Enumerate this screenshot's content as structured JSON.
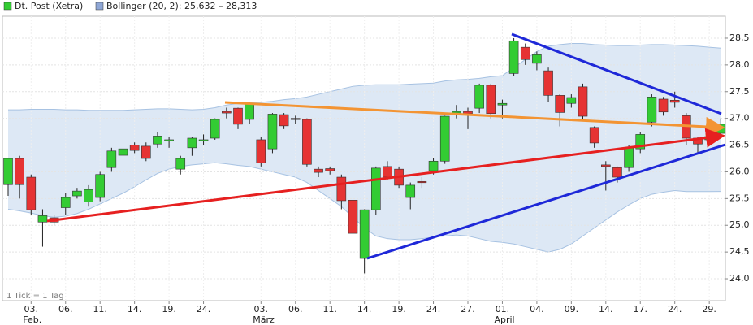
{
  "chart_data": {
    "type": "candlestick",
    "name": "Dt. Post (Xetra)",
    "up_color": "#33cc33",
    "down_color": "#e63333",
    "band": {
      "name": "Bollinger (20, 2): 25,632 – 28,313",
      "fill": "#dde8f5",
      "stroke": "#a7c2e2",
      "upper": [
        27.16,
        27.16,
        27.17,
        27.17,
        27.17,
        27.16,
        27.16,
        27.15,
        27.15,
        27.15,
        27.15,
        27.16,
        27.17,
        27.18,
        27.18,
        27.17,
        27.16,
        27.17,
        27.2,
        27.25,
        27.28,
        27.3,
        27.3,
        27.32,
        27.35,
        27.37,
        27.4,
        27.45,
        27.5,
        27.55,
        27.6,
        27.62,
        27.63,
        27.63,
        27.63,
        27.64,
        27.65,
        27.66,
        27.7,
        27.72,
        27.73,
        27.75,
        27.78,
        27.8,
        27.95,
        28.1,
        28.25,
        28.35,
        28.38,
        28.4,
        28.4,
        28.38,
        28.37,
        28.36,
        28.36,
        28.37,
        28.38,
        28.38,
        28.37,
        28.36,
        28.35,
        28.33,
        28.313
      ],
      "lower": [
        25.3,
        25.27,
        25.23,
        25.18,
        25.15,
        25.17,
        25.22,
        25.3,
        25.4,
        25.5,
        25.6,
        25.72,
        25.85,
        25.97,
        26.05,
        26.1,
        26.13,
        26.15,
        26.17,
        26.15,
        26.12,
        26.1,
        26.05,
        26.0,
        25.95,
        25.9,
        25.8,
        25.65,
        25.5,
        25.35,
        25.15,
        24.95,
        24.8,
        24.75,
        24.73,
        24.73,
        24.75,
        24.78,
        24.8,
        24.82,
        24.8,
        24.75,
        24.7,
        24.68,
        24.65,
        24.6,
        24.55,
        24.5,
        24.55,
        24.65,
        24.8,
        24.95,
        25.1,
        25.25,
        25.38,
        25.5,
        25.58,
        25.62,
        25.65,
        25.63,
        25.63,
        25.63,
        25.632
      ]
    },
    "categories": [
      null,
      null,
      "03.",
      null,
      null,
      "06.",
      null,
      null,
      "11.",
      null,
      null,
      "14.",
      null,
      null,
      "19.",
      null,
      null,
      "24.",
      null,
      null,
      null,
      null,
      "03.",
      null,
      null,
      "06.",
      null,
      null,
      "11.",
      null,
      null,
      "14.",
      null,
      null,
      "19.",
      null,
      null,
      "24.",
      null,
      null,
      "27.",
      null,
      null,
      "01.",
      null,
      null,
      "04.",
      null,
      null,
      "09.",
      null,
      null,
      "14.",
      null,
      null,
      "17.",
      null,
      null,
      "24.",
      null,
      null,
      "29.",
      null
    ],
    "months": [
      null,
      null,
      "Feb.",
      null,
      null,
      null,
      null,
      null,
      null,
      null,
      null,
      null,
      null,
      null,
      null,
      null,
      null,
      null,
      null,
      null,
      null,
      null,
      "März",
      null,
      null,
      null,
      null,
      null,
      null,
      null,
      null,
      null,
      null,
      null,
      null,
      null,
      null,
      null,
      null,
      null,
      null,
      null,
      null,
      "April",
      null,
      null,
      null,
      null,
      null,
      null,
      null,
      null,
      null,
      null,
      null,
      null,
      null,
      null,
      null,
      null,
      null,
      null,
      null
    ],
    "open": [
      25.76,
      26.25,
      25.9,
      25.06,
      25.14,
      25.33,
      25.55,
      25.44,
      25.52,
      26.08,
      26.31,
      26.5,
      26.48,
      26.52,
      26.58,
      26.05,
      26.45,
      26.58,
      26.63,
      27.13,
      27.19,
      26.98,
      26.6,
      26.43,
      27.07,
      27.0,
      26.98,
      26.05,
      26.06,
      25.9,
      25.47,
      24.38,
      25.29,
      26.1,
      26.05,
      25.52,
      25.82,
      26.02,
      26.2,
      27.1,
      27.13,
      27.19,
      27.62,
      27.25,
      27.84,
      28.33,
      28.03,
      27.89,
      27.43,
      27.28,
      27.59,
      26.83,
      26.13,
      26.08,
      26.08,
      26.43,
      26.93,
      27.36,
      27.34,
      27.05,
      26.63,
      26.6,
      26.72
    ],
    "high": [
      26.25,
      26.3,
      25.95,
      25.3,
      25.2,
      25.6,
      25.7,
      25.75,
      26.0,
      26.45,
      26.5,
      26.55,
      26.55,
      26.75,
      26.65,
      26.3,
      26.65,
      26.7,
      27.0,
      27.2,
      27.2,
      27.3,
      26.65,
      27.1,
      27.1,
      27.05,
      27.0,
      26.1,
      26.1,
      25.95,
      25.5,
      25.3,
      26.1,
      26.2,
      26.1,
      25.8,
      25.9,
      26.25,
      27.05,
      27.25,
      27.2,
      27.65,
      27.65,
      27.35,
      28.5,
      28.4,
      28.25,
      27.95,
      27.45,
      27.45,
      27.65,
      26.85,
      26.2,
      26.1,
      26.5,
      26.75,
      27.45,
      27.4,
      27.5,
      27.1,
      26.65,
      26.75,
      27.0
    ],
    "low": [
      25.55,
      25.5,
      25.2,
      24.6,
      25.0,
      25.2,
      25.5,
      25.35,
      25.45,
      26.0,
      26.25,
      26.35,
      26.2,
      26.45,
      26.45,
      25.95,
      26.3,
      26.5,
      26.6,
      27.0,
      26.8,
      26.9,
      26.1,
      26.35,
      26.8,
      26.9,
      26.1,
      25.9,
      25.95,
      25.3,
      24.75,
      24.1,
      25.2,
      25.85,
      25.7,
      25.3,
      25.7,
      25.95,
      26.15,
      27.0,
      26.8,
      27.1,
      27.0,
      27.0,
      27.8,
      28.0,
      27.9,
      27.3,
      26.85,
      27.2,
      26.95,
      26.45,
      25.65,
      25.8,
      26.0,
      26.35,
      26.85,
      27.05,
      27.2,
      26.5,
      26.35,
      26.55,
      26.65
    ],
    "close": [
      26.25,
      25.76,
      25.29,
      25.18,
      25.06,
      25.52,
      25.64,
      25.67,
      25.95,
      26.39,
      26.43,
      26.4,
      26.25,
      26.67,
      26.6,
      26.25,
      26.63,
      26.6,
      26.98,
      27.1,
      26.89,
      27.28,
      26.17,
      27.08,
      26.86,
      26.98,
      26.14,
      25.99,
      26.02,
      25.46,
      24.85,
      25.29,
      26.07,
      25.9,
      25.75,
      25.75,
      25.8,
      26.2,
      27.04,
      27.13,
      27.09,
      27.62,
      27.09,
      27.28,
      28.45,
      28.1,
      28.19,
      27.43,
      27.11,
      27.39,
      27.04,
      26.54,
      26.1,
      25.9,
      26.45,
      26.7,
      27.4,
      27.12,
      27.3,
      26.63,
      26.52,
      26.66,
      26.89
    ],
    "ylim": [
      23.59,
      28.91
    ],
    "yticks": [
      {
        "value": 24.0,
        "label": "24,0"
      },
      {
        "value": 24.5,
        "label": "24,5"
      },
      {
        "value": 25.0,
        "label": "25,0"
      },
      {
        "value": 25.5,
        "label": "25,5"
      },
      {
        "value": 26.0,
        "label": "26,0"
      },
      {
        "value": 26.5,
        "label": "26,5"
      },
      {
        "value": 27.0,
        "label": "27,0"
      },
      {
        "value": 27.5,
        "label": "27,5"
      },
      {
        "value": 28.0,
        "label": "28,0"
      },
      {
        "value": 28.5,
        "label": "28,5"
      }
    ],
    "grid": true,
    "note": "1 Tick = 1 Tag"
  }
}
